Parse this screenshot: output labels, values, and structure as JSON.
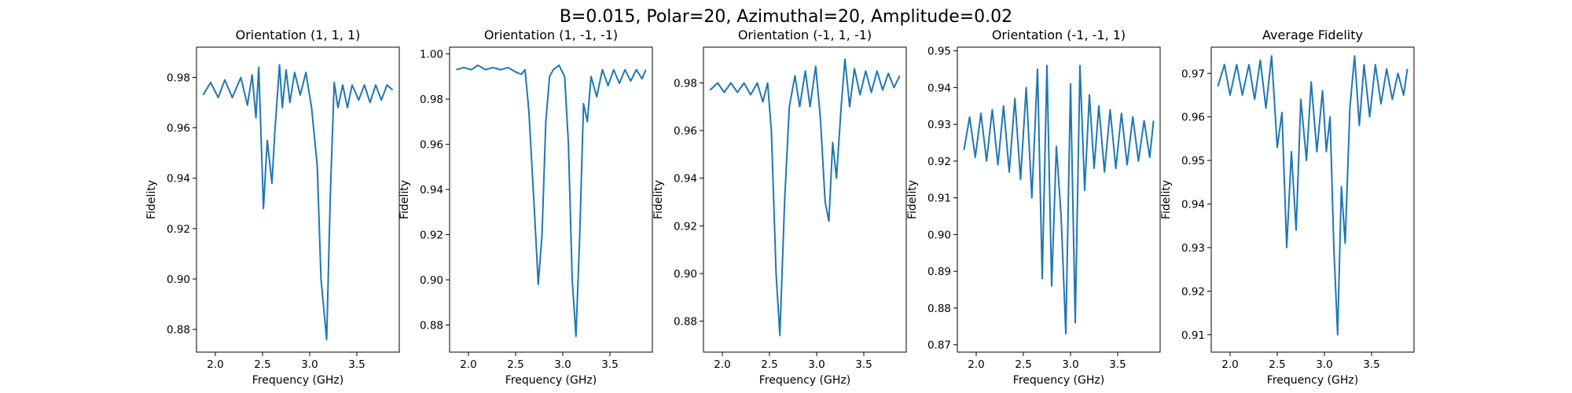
{
  "figure": {
    "suptitle": "B=0.015, Polar=20, Azimuthal=20, Amplitude=0.02"
  },
  "colors": {
    "series": "#1f77b4",
    "axes": "#000000",
    "background": "#ffffff"
  },
  "chart_data": [
    {
      "type": "line",
      "title": "Orientation (1, 1, 1)",
      "xlabel": "Frequency (GHz)",
      "ylabel": "Fidelity",
      "xlim": [
        1.8,
        3.95
      ],
      "ylim": [
        0.871,
        0.992
      ],
      "xticks": [
        2.0,
        2.5,
        3.0,
        3.5
      ],
      "xtick_labels": [
        "2.0",
        "2.5",
        "3.0",
        "3.5"
      ],
      "yticks": [
        0.88,
        0.9,
        0.92,
        0.94,
        0.96,
        0.98
      ],
      "ytick_labels": [
        "0.88",
        "0.90",
        "0.92",
        "0.94",
        "0.96",
        "0.98"
      ],
      "series": [
        {
          "x": [
            1.87,
            1.95,
            2.03,
            2.1,
            2.18,
            2.27,
            2.34,
            2.39,
            2.43,
            2.46,
            2.51,
            2.55,
            2.6,
            2.63,
            2.68,
            2.71,
            2.75,
            2.79,
            2.84,
            2.9,
            2.96,
            3.02,
            3.08,
            3.12,
            3.18,
            3.22,
            3.26,
            3.3,
            3.35,
            3.4,
            3.45,
            3.52,
            3.58,
            3.64,
            3.7,
            3.76,
            3.82,
            3.88
          ],
          "y": [
            0.973,
            0.978,
            0.972,
            0.979,
            0.972,
            0.98,
            0.969,
            0.981,
            0.964,
            0.984,
            0.928,
            0.955,
            0.938,
            0.958,
            0.985,
            0.968,
            0.983,
            0.97,
            0.982,
            0.973,
            0.982,
            0.968,
            0.945,
            0.9,
            0.876,
            0.935,
            0.978,
            0.968,
            0.977,
            0.968,
            0.977,
            0.971,
            0.977,
            0.97,
            0.977,
            0.971,
            0.977,
            0.975
          ]
        }
      ]
    },
    {
      "type": "line",
      "title": "Orientation (1, -1, -1)",
      "xlabel": "Frequency (GHz)",
      "ylabel": "Fidelity",
      "xlim": [
        1.8,
        3.95
      ],
      "ylim": [
        0.868,
        1.003
      ],
      "xticks": [
        2.0,
        2.5,
        3.0,
        3.5
      ],
      "xtick_labels": [
        "2.0",
        "2.5",
        "3.0",
        "3.5"
      ],
      "yticks": [
        0.88,
        0.9,
        0.92,
        0.94,
        0.96,
        0.98,
        1.0
      ],
      "ytick_labels": [
        "0.88",
        "0.90",
        "0.92",
        "0.94",
        "0.96",
        "0.98",
        "1.00"
      ],
      "series": [
        {
          "x": [
            1.87,
            1.95,
            2.03,
            2.1,
            2.18,
            2.26,
            2.34,
            2.42,
            2.5,
            2.56,
            2.6,
            2.64,
            2.7,
            2.74,
            2.78,
            2.82,
            2.86,
            2.9,
            2.96,
            3.02,
            3.06,
            3.1,
            3.14,
            3.18,
            3.22,
            3.26,
            3.3,
            3.36,
            3.42,
            3.48,
            3.54,
            3.6,
            3.66,
            3.72,
            3.78,
            3.84,
            3.88
          ],
          "y": [
            0.993,
            0.994,
            0.993,
            0.995,
            0.993,
            0.994,
            0.993,
            0.994,
            0.992,
            0.991,
            0.993,
            0.975,
            0.93,
            0.898,
            0.92,
            0.97,
            0.99,
            0.993,
            0.995,
            0.99,
            0.96,
            0.9,
            0.875,
            0.92,
            0.978,
            0.97,
            0.99,
            0.981,
            0.993,
            0.986,
            0.993,
            0.987,
            0.993,
            0.988,
            0.993,
            0.989,
            0.993
          ]
        }
      ]
    },
    {
      "type": "line",
      "title": "Orientation (-1, 1, -1)",
      "xlabel": "Frequency (GHz)",
      "ylabel": "Fidelity",
      "xlim": [
        1.8,
        3.95
      ],
      "ylim": [
        0.867,
        0.995
      ],
      "xticks": [
        2.0,
        2.5,
        3.0,
        3.5
      ],
      "xtick_labels": [
        "2.0",
        "2.5",
        "3.0",
        "3.5"
      ],
      "yticks": [
        0.88,
        0.9,
        0.92,
        0.94,
        0.96,
        0.98
      ],
      "ytick_labels": [
        "0.88",
        "0.90",
        "0.92",
        "0.94",
        "0.96",
        "0.98"
      ],
      "series": [
        {
          "x": [
            1.87,
            1.95,
            2.02,
            2.09,
            2.16,
            2.23,
            2.3,
            2.37,
            2.43,
            2.48,
            2.52,
            2.57,
            2.61,
            2.66,
            2.71,
            2.77,
            2.82,
            2.88,
            2.93,
            2.99,
            3.04,
            3.09,
            3.13,
            3.17,
            3.21,
            3.26,
            3.3,
            3.35,
            3.4,
            3.46,
            3.52,
            3.58,
            3.64,
            3.7,
            3.76,
            3.82,
            3.88
          ],
          "y": [
            0.977,
            0.98,
            0.976,
            0.98,
            0.976,
            0.98,
            0.975,
            0.98,
            0.972,
            0.98,
            0.96,
            0.9,
            0.874,
            0.93,
            0.97,
            0.983,
            0.97,
            0.985,
            0.97,
            0.987,
            0.965,
            0.93,
            0.922,
            0.955,
            0.94,
            0.97,
            0.99,
            0.97,
            0.986,
            0.975,
            0.985,
            0.976,
            0.985,
            0.977,
            0.984,
            0.978,
            0.983
          ]
        }
      ]
    },
    {
      "type": "line",
      "title": "Orientation (-1, -1, 1)",
      "xlabel": "Frequency (GHz)",
      "ylabel": "Fidelity",
      "xlim": [
        1.8,
        3.95
      ],
      "ylim": [
        0.868,
        0.951
      ],
      "xticks": [
        2.0,
        2.5,
        3.0,
        3.5
      ],
      "xtick_labels": [
        "2.0",
        "2.5",
        "3.0",
        "3.5"
      ],
      "yticks": [
        0.87,
        0.88,
        0.89,
        0.9,
        0.91,
        0.92,
        0.93,
        0.94,
        0.95
      ],
      "ytick_labels": [
        "0.87",
        "0.88",
        "0.89",
        "0.90",
        "0.91",
        "0.92",
        "0.93",
        "0.94",
        "0.95"
      ],
      "series": [
        {
          "x": [
            1.87,
            1.93,
            1.99,
            2.05,
            2.11,
            2.17,
            2.23,
            2.29,
            2.35,
            2.41,
            2.47,
            2.53,
            2.59,
            2.65,
            2.7,
            2.75,
            2.8,
            2.85,
            2.9,
            2.95,
            3.0,
            3.05,
            3.1,
            3.15,
            3.2,
            3.25,
            3.3,
            3.36,
            3.42,
            3.48,
            3.54,
            3.6,
            3.66,
            3.72,
            3.78,
            3.84,
            3.88
          ],
          "y": [
            0.923,
            0.932,
            0.921,
            0.933,
            0.92,
            0.934,
            0.919,
            0.935,
            0.917,
            0.937,
            0.915,
            0.94,
            0.91,
            0.945,
            0.888,
            0.946,
            0.886,
            0.924,
            0.905,
            0.873,
            0.941,
            0.876,
            0.946,
            0.912,
            0.938,
            0.918,
            0.935,
            0.917,
            0.934,
            0.918,
            0.933,
            0.919,
            0.932,
            0.92,
            0.931,
            0.921,
            0.931
          ]
        }
      ]
    },
    {
      "type": "line",
      "title": "Average Fidelity",
      "xlabel": "Frequency (GHz)",
      "ylabel": "Fidelity",
      "xlim": [
        1.8,
        3.95
      ],
      "ylim": [
        0.906,
        0.976
      ],
      "xticks": [
        2.0,
        2.5,
        3.0,
        3.5
      ],
      "xtick_labels": [
        "2.0",
        "2.5",
        "3.0",
        "3.5"
      ],
      "yticks": [
        0.91,
        0.92,
        0.93,
        0.94,
        0.95,
        0.96,
        0.97
      ],
      "ytick_labels": [
        "0.91",
        "0.92",
        "0.93",
        "0.94",
        "0.95",
        "0.96",
        "0.97"
      ],
      "series": [
        {
          "x": [
            1.87,
            1.94,
            2.0,
            2.07,
            2.13,
            2.2,
            2.26,
            2.32,
            2.38,
            2.44,
            2.5,
            2.55,
            2.6,
            2.65,
            2.7,
            2.75,
            2.81,
            2.86,
            2.92,
            2.98,
            3.02,
            3.06,
            3.1,
            3.14,
            3.18,
            3.22,
            3.27,
            3.32,
            3.37,
            3.42,
            3.48,
            3.54,
            3.6,
            3.66,
            3.72,
            3.78,
            3.84,
            3.88
          ],
          "y": [
            0.967,
            0.972,
            0.965,
            0.972,
            0.965,
            0.972,
            0.964,
            0.973,
            0.962,
            0.974,
            0.953,
            0.961,
            0.93,
            0.952,
            0.934,
            0.964,
            0.95,
            0.968,
            0.952,
            0.966,
            0.952,
            0.96,
            0.93,
            0.91,
            0.944,
            0.931,
            0.962,
            0.974,
            0.958,
            0.972,
            0.96,
            0.972,
            0.963,
            0.971,
            0.964,
            0.97,
            0.965,
            0.971
          ]
        }
      ]
    }
  ]
}
